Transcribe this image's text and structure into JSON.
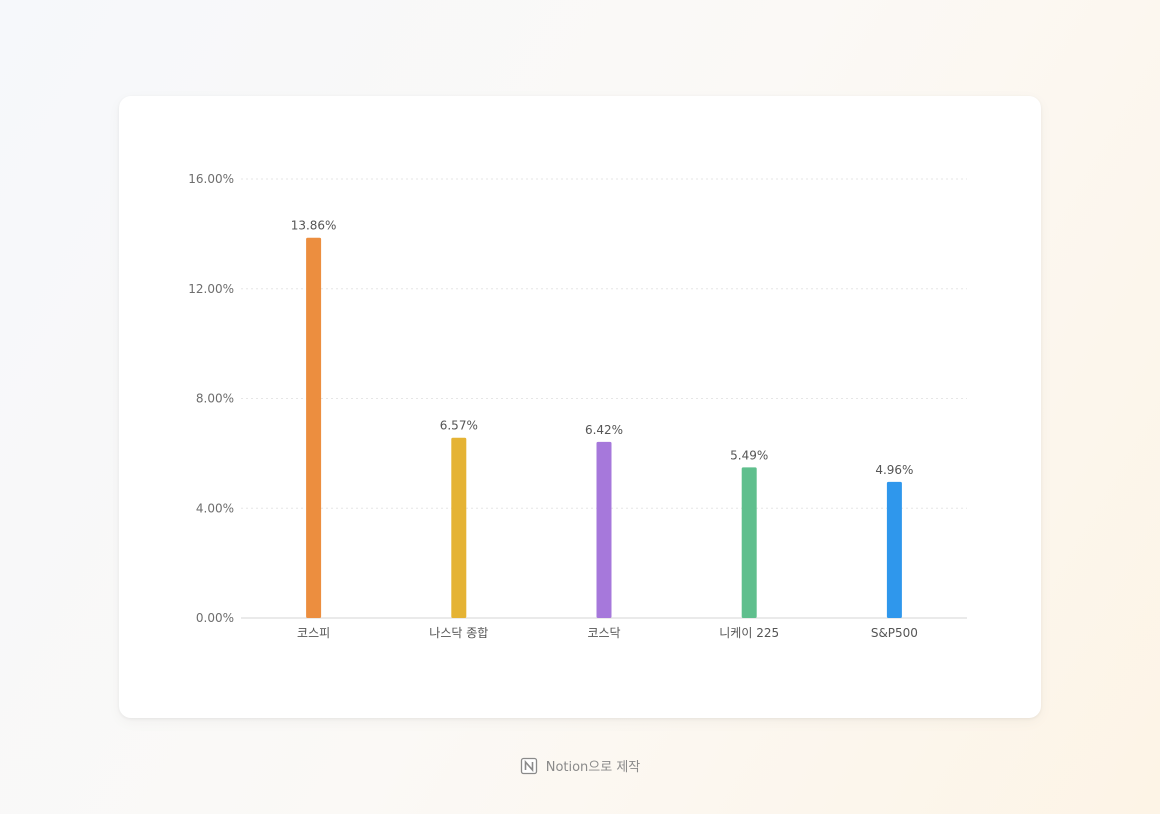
{
  "chart_data": {
    "type": "bar",
    "categories": [
      "코스피",
      "나스닥 종합",
      "코스닥",
      "니케이 225",
      "S&P500"
    ],
    "values": [
      13.86,
      6.57,
      6.42,
      5.49,
      4.96
    ],
    "data_labels": [
      "13.86%",
      "6.57%",
      "6.42%",
      "5.49%",
      "4.96%"
    ],
    "colors": [
      "#EC8E3F",
      "#E5B334",
      "#A678DB",
      "#5FBF8D",
      "#2F97EC"
    ],
    "yticks": [
      0,
      4,
      8,
      12,
      16
    ],
    "ytick_labels": [
      "0.00%",
      "4.00%",
      "8.00%",
      "12.00%",
      "16.00%"
    ],
    "ylim": [
      0,
      16
    ],
    "grid": true,
    "title": "",
    "xlabel": "",
    "ylabel": ""
  },
  "footer": {
    "icon": "notion-icon",
    "label": "Notion으로 제작"
  }
}
